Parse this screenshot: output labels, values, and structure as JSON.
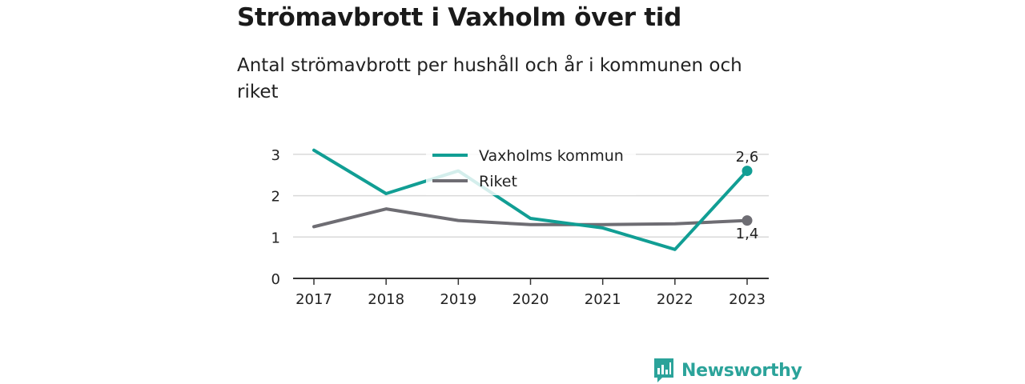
{
  "title": "Strömavbrott i Vaxholm över tid",
  "subtitle": "Antal strömavbrott per hushåll och år i kommunen och riket",
  "brand": {
    "name": "Newsworthy"
  },
  "colors": {
    "vaxholm": "#119e94",
    "riket": "#6e6d73",
    "grid": "#d9d9d9",
    "axis": "#333333"
  },
  "chart_data": {
    "type": "line",
    "x": [
      "2017",
      "2018",
      "2019",
      "2020",
      "2021",
      "2022",
      "2023"
    ],
    "series": [
      {
        "name": "Vaxholms kommun",
        "values": [
          3.1,
          2.05,
          2.6,
          1.45,
          1.22,
          0.7,
          2.6
        ],
        "end_label": "2,6"
      },
      {
        "name": "Riket",
        "values": [
          1.25,
          1.68,
          1.4,
          1.3,
          1.3,
          1.32,
          1.4
        ],
        "end_label": "1,4"
      }
    ],
    "yticks": [
      "0",
      "1",
      "2",
      "3"
    ],
    "ylim": [
      0,
      3.2
    ],
    "grid": true,
    "legend": "top-center"
  }
}
